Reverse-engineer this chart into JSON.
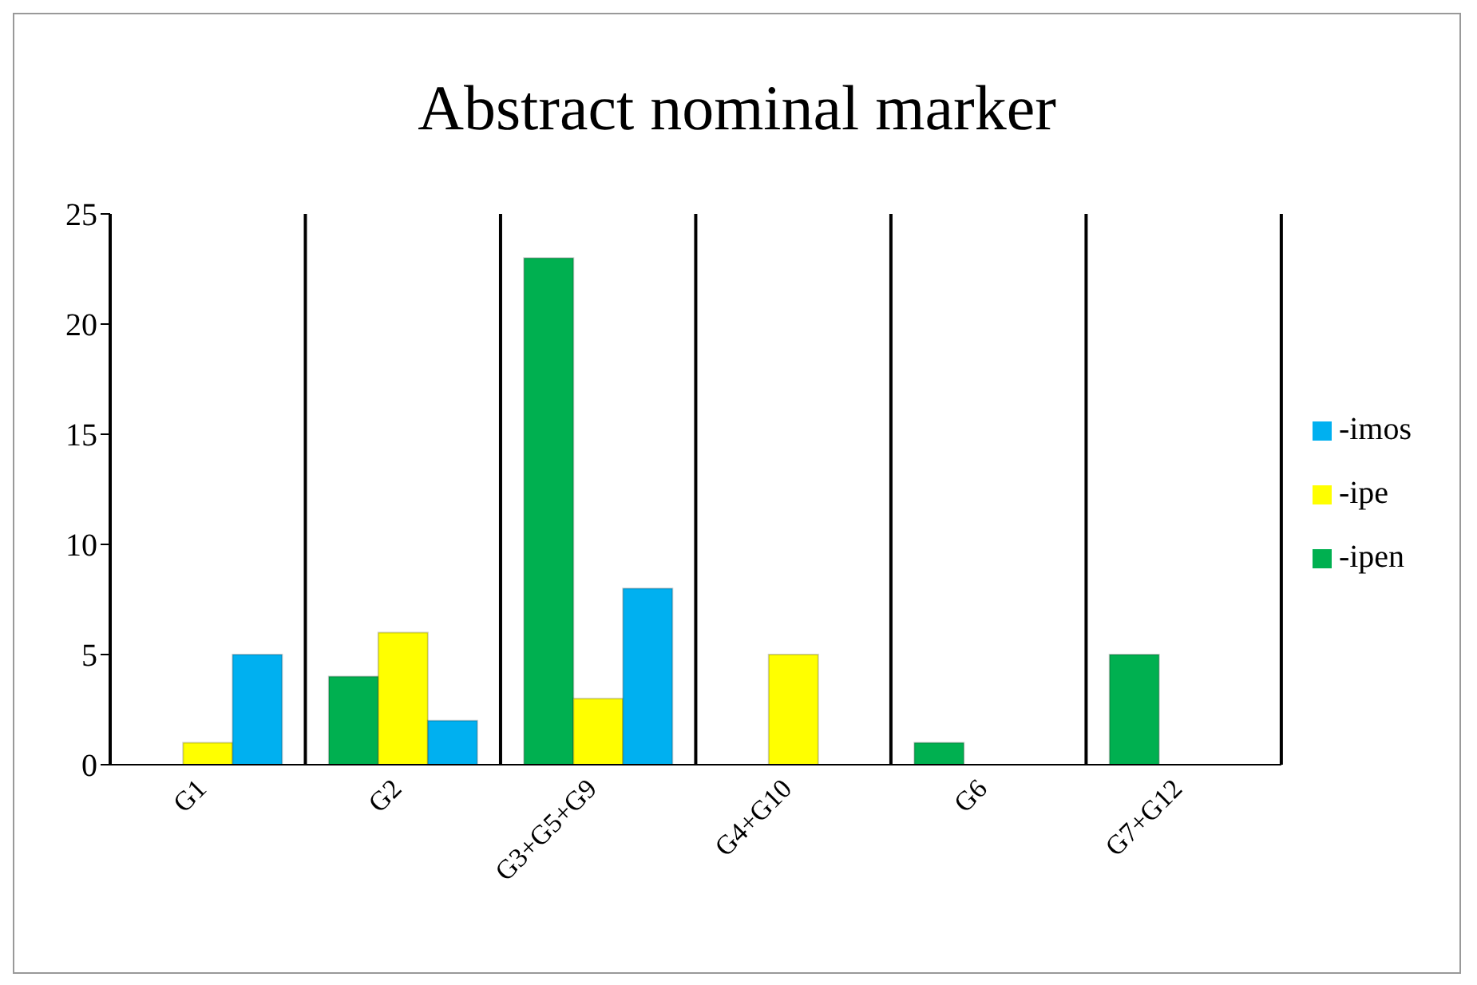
{
  "chart_data": {
    "type": "bar",
    "title": "Abstract nominal marker",
    "categories": [
      "G1",
      "G2",
      "G3+G5+G9",
      "G4+G10",
      "G6",
      "G7+G12"
    ],
    "series": [
      {
        "name": "-ipen",
        "color": "#00b050",
        "values": [
          0,
          4,
          23,
          0,
          1,
          5
        ]
      },
      {
        "name": "-ipe",
        "color": "#ffff00",
        "values": [
          1,
          6,
          3,
          5,
          0,
          0
        ]
      },
      {
        "name": "-imos",
        "color": "#00b0f0",
        "values": [
          5,
          2,
          8,
          0,
          0,
          0
        ]
      }
    ],
    "ylim": [
      0,
      25
    ],
    "yticks": [
      0,
      5,
      10,
      15,
      20,
      25
    ],
    "grid": "x",
    "legend": "right"
  }
}
